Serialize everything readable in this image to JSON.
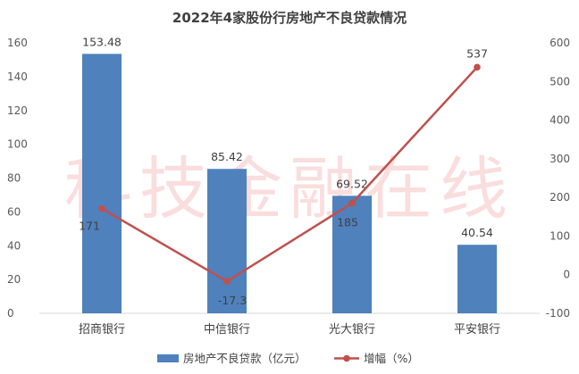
{
  "chart_data": {
    "type": "bar",
    "title": "2022年4家股份行房地产不良贷款情况",
    "categories": [
      "招商银行",
      "中信银行",
      "光大银行",
      "平安银行"
    ],
    "series": [
      {
        "name": "房地产不良贷款（亿元）",
        "type": "bar",
        "axis": "left",
        "values": [
          153.48,
          85.42,
          69.52,
          40.54
        ],
        "labels": [
          "153.48",
          "85.42",
          "69.52",
          "40.54"
        ],
        "color": "#4f81bd"
      },
      {
        "name": "增幅（%）",
        "type": "line",
        "axis": "right",
        "values": [
          171,
          -17.3,
          185,
          537
        ],
        "labels": [
          "171",
          "-17.3",
          "185",
          "537"
        ],
        "color": "#c0504d"
      }
    ],
    "y_left": {
      "min": 0,
      "max": 160,
      "step": 20
    },
    "y_right": {
      "min": -100,
      "max": 600,
      "step": 100
    },
    "grid": false,
    "legend": "bottom",
    "highlight_label_color": "#c00000"
  },
  "watermark": "科技金融在线"
}
